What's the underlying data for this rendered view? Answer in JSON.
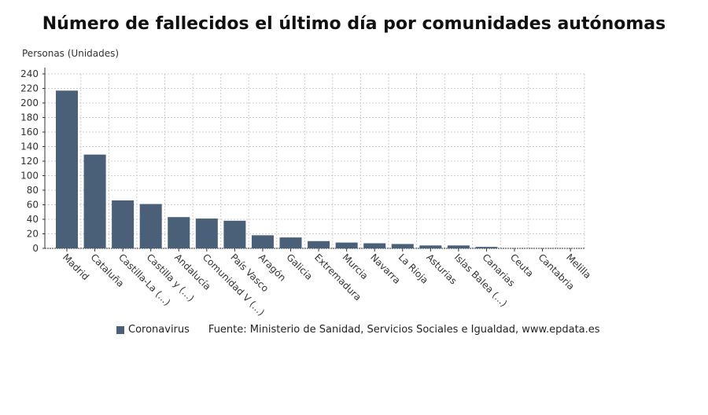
{
  "chart_data": {
    "type": "bar",
    "title": "Número de fallecidos el último día por comunidades autónomas",
    "ylabel": "Personas (Unidades)",
    "xlabel": "",
    "ylim": [
      0,
      240
    ],
    "yticks": [
      0,
      20,
      40,
      60,
      80,
      100,
      120,
      140,
      160,
      180,
      200,
      220,
      240
    ],
    "grid": true,
    "categories": [
      "Madrid",
      "Cataluña",
      "Castilla-La (...)",
      "Castilla y (...)",
      "Andalucía",
      "Comunidad V (...)",
      "País Vasco",
      "Aragón",
      "Galicia",
      "Extremadura",
      "Murcia",
      "Navarra",
      "La Rioja",
      "Asturias",
      "Islas Balea (...)",
      "Canarias",
      "Ceuta",
      "Cantabria",
      "Melilla"
    ],
    "series": [
      {
        "name": "Coronavirus",
        "color": "#4a5f78",
        "values": [
          217,
          129,
          66,
          61,
          43,
          41,
          38,
          18,
          15,
          10,
          8,
          7,
          6,
          4,
          4,
          2,
          0,
          0,
          0
        ]
      }
    ],
    "legend_placement": "bottom-left",
    "source": "Fuente: Ministerio de Sanidad, Servicios Sociales e Igualdad, www.epdata.es"
  }
}
